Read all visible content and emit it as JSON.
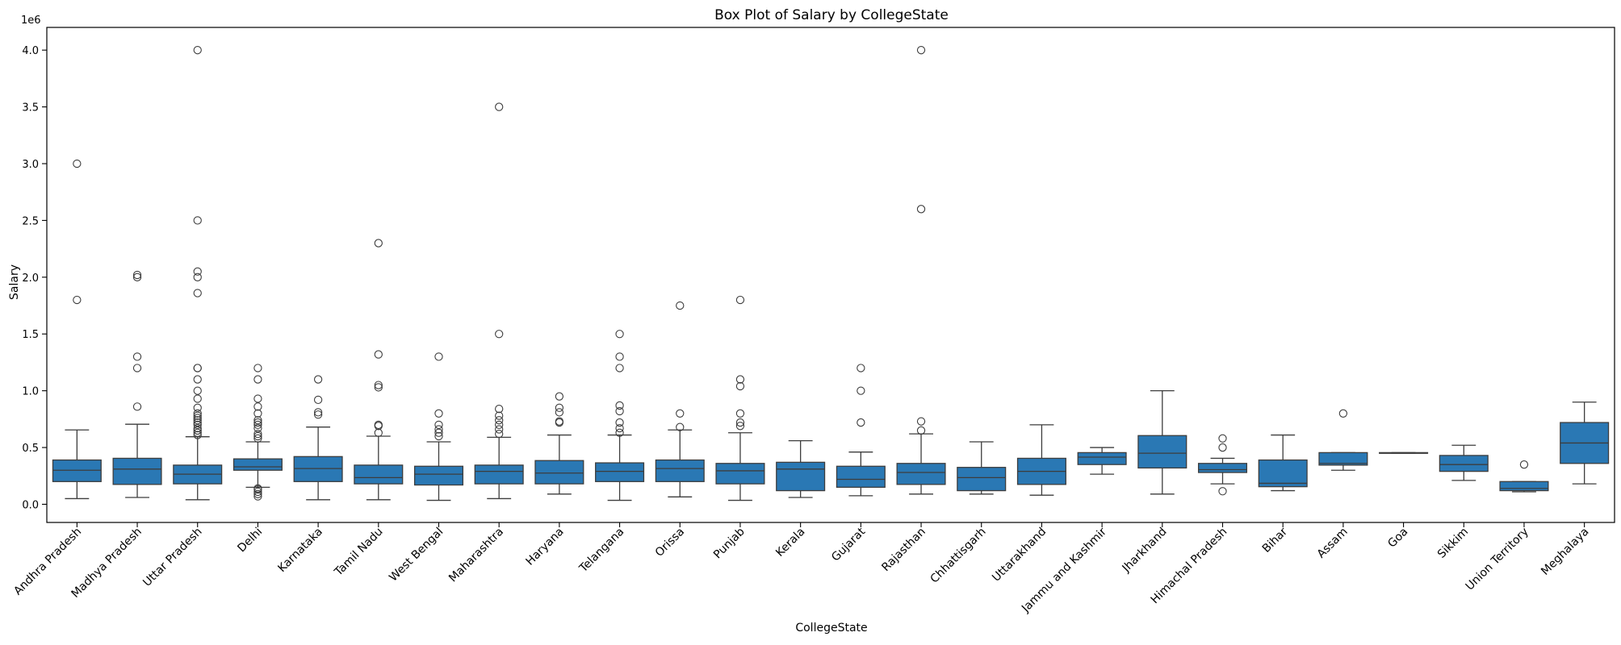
{
  "chart_data": {
    "type": "box",
    "title": "Box Plot of Salary by CollegeState",
    "xlabel": "CollegeState",
    "ylabel": "Salary",
    "y_scale_label": "1e6",
    "ylim": [
      -0.16,
      4.2
    ],
    "yticks": [
      0.0,
      0.5,
      1.0,
      1.5,
      2.0,
      2.5,
      3.0,
      3.5,
      4.0
    ],
    "ytick_labels": [
      "0.0",
      "0.5",
      "1.0",
      "1.5",
      "2.0",
      "2.5",
      "3.0",
      "3.5",
      "4.0"
    ],
    "box_color": "#2a78b4",
    "line_color": "#3d3d3d",
    "grid": false,
    "categories": [
      "Andhra Pradesh",
      "Madhya Pradesh",
      "Uttar Pradesh",
      "Delhi",
      "Karnataka",
      "Tamil Nadu",
      "West Bengal",
      "Maharashtra",
      "Haryana",
      "Telangana",
      "Orissa",
      "Punjab",
      "Kerala",
      "Gujarat",
      "Rajasthan",
      "Chhattisgarh",
      "Uttarakhand",
      "Jammu and Kashmir",
      "Jharkhand",
      "Himachal Pradesh",
      "Bihar",
      "Assam",
      "Goa",
      "Sikkim",
      "Union Territory",
      "Meghalaya"
    ],
    "boxes": [
      {
        "whislo": 0.05,
        "q1": 0.2,
        "med": 0.3,
        "q3": 0.39,
        "whishi": 0.655,
        "fliers": [
          1.8,
          3.0
        ]
      },
      {
        "whislo": 0.06,
        "q1": 0.175,
        "med": 0.31,
        "q3": 0.405,
        "whishi": 0.705,
        "fliers": [
          0.86,
          1.2,
          1.3,
          2.0,
          2.02
        ]
      },
      {
        "whislo": 0.04,
        "q1": 0.18,
        "med": 0.265,
        "q3": 0.345,
        "whishi": 0.595,
        "fliers": [
          0.61,
          0.63,
          0.65,
          0.67,
          0.7,
          0.72,
          0.74,
          0.76,
          0.78,
          0.8,
          0.85,
          0.93,
          1.0,
          1.1,
          1.2,
          1.2,
          1.86,
          2.0,
          2.05,
          2.5,
          4.0
        ]
      },
      {
        "whislo": 0.15,
        "q1": 0.3,
        "med": 0.33,
        "q3": 0.4,
        "whishi": 0.55,
        "fliers": [
          0.07,
          0.09,
          0.11,
          0.13,
          0.14,
          0.58,
          0.6,
          0.62,
          0.67,
          0.7,
          0.72,
          0.74,
          0.8,
          0.86,
          0.93,
          1.1,
          1.2
        ]
      },
      {
        "whislo": 0.04,
        "q1": 0.2,
        "med": 0.315,
        "q3": 0.42,
        "whishi": 0.68,
        "fliers": [
          0.79,
          0.81,
          0.92,
          1.1
        ]
      },
      {
        "whislo": 0.04,
        "q1": 0.18,
        "med": 0.235,
        "q3": 0.345,
        "whishi": 0.6,
        "fliers": [
          0.63,
          0.69,
          0.7,
          1.03,
          1.05,
          1.32,
          2.3
        ]
      },
      {
        "whislo": 0.035,
        "q1": 0.17,
        "med": 0.265,
        "q3": 0.335,
        "whishi": 0.55,
        "fliers": [
          0.6,
          0.63,
          0.66,
          0.7,
          0.8,
          1.3
        ]
      },
      {
        "whislo": 0.05,
        "q1": 0.18,
        "med": 0.29,
        "q3": 0.345,
        "whishi": 0.59,
        "fliers": [
          0.62,
          0.66,
          0.7,
          0.74,
          0.78,
          0.84,
          1.5,
          3.5
        ]
      },
      {
        "whislo": 0.09,
        "q1": 0.18,
        "med": 0.275,
        "q3": 0.385,
        "whishi": 0.61,
        "fliers": [
          0.72,
          0.73,
          0.81,
          0.85,
          0.95
        ]
      },
      {
        "whislo": 0.035,
        "q1": 0.2,
        "med": 0.29,
        "q3": 0.365,
        "whishi": 0.61,
        "fliers": [
          0.63,
          0.67,
          0.72,
          0.82,
          0.87,
          1.2,
          1.3,
          1.5
        ]
      },
      {
        "whislo": 0.065,
        "q1": 0.2,
        "med": 0.315,
        "q3": 0.39,
        "whishi": 0.655,
        "fliers": [
          0.68,
          0.8,
          1.75
        ]
      },
      {
        "whislo": 0.035,
        "q1": 0.18,
        "med": 0.295,
        "q3": 0.36,
        "whishi": 0.63,
        "fliers": [
          0.69,
          0.72,
          0.8,
          1.04,
          1.1,
          1.8
        ]
      },
      {
        "whislo": 0.06,
        "q1": 0.12,
        "med": 0.31,
        "q3": 0.37,
        "whishi": 0.56,
        "fliers": []
      },
      {
        "whislo": 0.075,
        "q1": 0.15,
        "med": 0.22,
        "q3": 0.335,
        "whishi": 0.46,
        "fliers": [
          0.72,
          1.0,
          1.2
        ]
      },
      {
        "whislo": 0.09,
        "q1": 0.175,
        "med": 0.28,
        "q3": 0.36,
        "whishi": 0.62,
        "fliers": [
          0.65,
          0.73,
          2.6,
          4.0
        ]
      },
      {
        "whislo": 0.09,
        "q1": 0.12,
        "med": 0.235,
        "q3": 0.325,
        "whishi": 0.55,
        "fliers": []
      },
      {
        "whislo": 0.08,
        "q1": 0.175,
        "med": 0.29,
        "q3": 0.405,
        "whishi": 0.7,
        "fliers": []
      },
      {
        "whislo": 0.265,
        "q1": 0.35,
        "med": 0.415,
        "q3": 0.455,
        "whishi": 0.5,
        "fliers": []
      },
      {
        "whislo": 0.09,
        "q1": 0.32,
        "med": 0.45,
        "q3": 0.605,
        "whishi": 1.0,
        "fliers": []
      },
      {
        "whislo": 0.18,
        "q1": 0.28,
        "med": 0.305,
        "q3": 0.36,
        "whishi": 0.405,
        "fliers": [
          0.115,
          0.5,
          0.58
        ]
      },
      {
        "whislo": 0.12,
        "q1": 0.155,
        "med": 0.185,
        "q3": 0.39,
        "whishi": 0.61,
        "fliers": []
      },
      {
        "whislo": 0.3,
        "q1": 0.345,
        "med": 0.36,
        "q3": 0.455,
        "whishi": 0.455,
        "fliers": [
          0.8
        ]
      },
      {
        "whislo": 0.45,
        "q1": 0.45,
        "med": 0.45,
        "q3": 0.455,
        "whishi": 0.455,
        "fliers": []
      },
      {
        "whislo": 0.21,
        "q1": 0.29,
        "med": 0.35,
        "q3": 0.43,
        "whishi": 0.52,
        "fliers": []
      },
      {
        "whislo": 0.11,
        "q1": 0.12,
        "med": 0.14,
        "q3": 0.2,
        "whishi": 0.2,
        "fliers": [
          0.35
        ]
      },
      {
        "whislo": 0.18,
        "q1": 0.36,
        "med": 0.54,
        "q3": 0.72,
        "whishi": 0.9,
        "fliers": []
      }
    ]
  }
}
